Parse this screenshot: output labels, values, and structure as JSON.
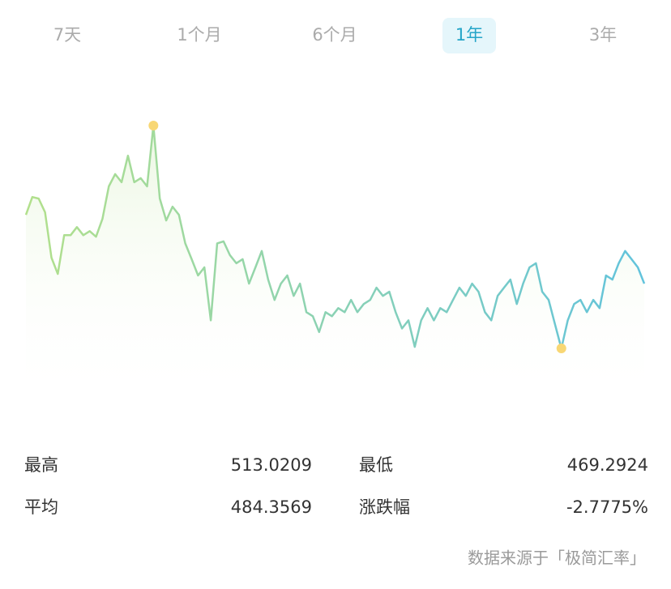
{
  "tabs": [
    "7天",
    "1个月",
    "6个月",
    "1年",
    "3年"
  ],
  "selected_tab": 3,
  "chart_data": {
    "type": "line",
    "values": [
      495.5,
      499.0,
      498.7,
      496.0,
      487.1,
      483.9,
      491.5,
      491.5,
      493.1,
      491.5,
      492.3,
      491.2,
      494.7,
      501.1,
      503.5,
      501.9,
      507.1,
      501.9,
      502.7,
      501.1,
      513.0209,
      498.7,
      494.4,
      497.1,
      495.5,
      489.9,
      486.8,
      483.6,
      485.2,
      474.8,
      489.9,
      490.3,
      487.6,
      486.0,
      486.8,
      482.0,
      485.2,
      488.4,
      482.8,
      478.8,
      482.0,
      483.6,
      479.6,
      482.0,
      476.4,
      475.6,
      472.5,
      476.4,
      475.6,
      477.2,
      476.4,
      478.8,
      476.4,
      478.0,
      478.8,
      481.2,
      479.6,
      480.4,
      476.4,
      473.2,
      474.8,
      469.6,
      474.8,
      477.2,
      474.8,
      477.2,
      476.4,
      478.8,
      481.2,
      479.6,
      482.0,
      480.4,
      476.4,
      474.8,
      479.6,
      481.2,
      482.8,
      478.0,
      482.0,
      485.2,
      486.0,
      480.4,
      478.8,
      474.0,
      469.2924,
      474.8,
      478.0,
      478.8,
      476.4,
      478.8,
      477.2,
      483.6,
      482.8,
      486.0,
      488.4,
      486.8,
      485.2,
      482.0
    ],
    "colors": [
      "#b2e08c",
      "#62c3dc"
    ],
    "marker_color": "#f8d774"
  },
  "stats": [
    {
      "label": "最高",
      "value": "513.0209"
    },
    {
      "label": "最低",
      "value": "469.2924"
    },
    {
      "label": "平均",
      "value": "484.3569"
    },
    {
      "label": "涨跌幅",
      "value": "-2.7775%"
    }
  ],
  "source": "数据来源于「极简汇率」"
}
